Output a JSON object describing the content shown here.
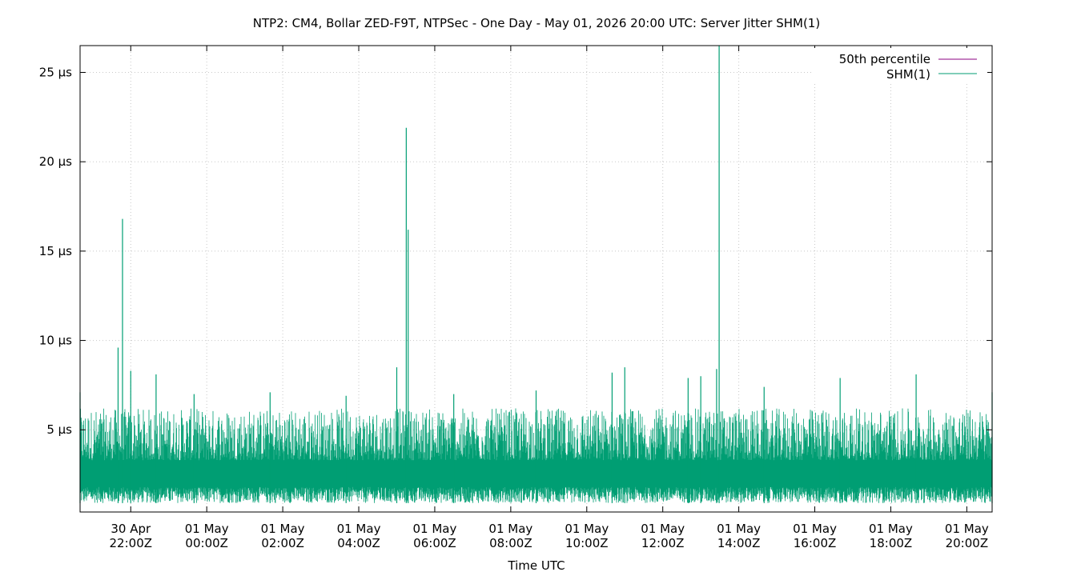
{
  "chart_data": {
    "type": "line",
    "title": "NTP2: CM4, Bollar ZED-F9T, NTPSec - One Day - May 01, 2026 20:00 UTC: Server Jitter SHM(1)",
    "xlabel": "Time UTC",
    "ylabel": "",
    "y_unit": "µs",
    "ylim": [
      0.4,
      26.5
    ],
    "xlim": [
      "2026-04-30T20:40Z",
      "2026-05-01T20:40Z"
    ],
    "y_ticks": [
      {
        "value": 5,
        "label": "5 µs"
      },
      {
        "value": 10,
        "label": "10 µs"
      },
      {
        "value": 15,
        "label": "15 µs"
      },
      {
        "value": 20,
        "label": "20 µs"
      },
      {
        "value": 25,
        "label": "25 µs"
      }
    ],
    "x_ticks": [
      {
        "time": "2026-04-30T22:00Z",
        "line1": "30 Apr",
        "line2": "22:00Z"
      },
      {
        "time": "2026-05-01T00:00Z",
        "line1": "01 May",
        "line2": "00:00Z"
      },
      {
        "time": "2026-05-01T02:00Z",
        "line1": "01 May",
        "line2": "02:00Z"
      },
      {
        "time": "2026-05-01T04:00Z",
        "line1": "01 May",
        "line2": "04:00Z"
      },
      {
        "time": "2026-05-01T06:00Z",
        "line1": "01 May",
        "line2": "06:00Z"
      },
      {
        "time": "2026-05-01T08:00Z",
        "line1": "01 May",
        "line2": "08:00Z"
      },
      {
        "time": "2026-05-01T10:00Z",
        "line1": "01 May",
        "line2": "10:00Z"
      },
      {
        "time": "2026-05-01T12:00Z",
        "line1": "01 May",
        "line2": "12:00Z"
      },
      {
        "time": "2026-05-01T14:00Z",
        "line1": "01 May",
        "line2": "14:00Z"
      },
      {
        "time": "2026-05-01T16:00Z",
        "line1": "01 May",
        "line2": "16:00Z"
      },
      {
        "time": "2026-05-01T18:00Z",
        "line1": "01 May",
        "line2": "18:00Z"
      },
      {
        "time": "2026-05-01T20:00Z",
        "line1": "01 May",
        "line2": "20:00Z"
      }
    ],
    "grid": true,
    "legend_position": "top-right",
    "series": [
      {
        "name": "50th percentile",
        "color": "#8b0080",
        "values": []
      },
      {
        "name": "SHM(1)",
        "color": "#009e73",
        "baseline_range": [
          0.9,
          6.2
        ],
        "x": [
          "2026-04-30T20:40Z",
          "2026-04-30T21:40Z",
          "2026-04-30T21:47Z",
          "2026-04-30T22:00Z",
          "2026-04-30T22:40Z",
          "2026-04-30T23:40Z",
          "2026-05-01T01:40Z",
          "2026-05-01T03:40Z",
          "2026-05-01T05:00Z",
          "2026-05-01T05:15Z",
          "2026-05-01T05:18Z",
          "2026-05-01T06:30Z",
          "2026-05-01T08:40Z",
          "2026-05-01T10:40Z",
          "2026-05-01T11:00Z",
          "2026-05-01T12:40Z",
          "2026-05-01T13:00Z",
          "2026-05-01T13:25Z",
          "2026-05-01T13:29Z",
          "2026-05-01T14:40Z",
          "2026-05-01T16:40Z",
          "2026-05-01T18:40Z",
          "2026-05-01T20:40Z"
        ],
        "y": [
          7.1,
          9.6,
          16.8,
          8.3,
          8.1,
          7.0,
          7.1,
          6.9,
          8.5,
          21.9,
          16.2,
          7.0,
          7.2,
          8.2,
          8.5,
          7.9,
          8.0,
          8.4,
          26.5,
          7.4,
          7.9,
          8.1,
          7.1
        ]
      }
    ]
  }
}
